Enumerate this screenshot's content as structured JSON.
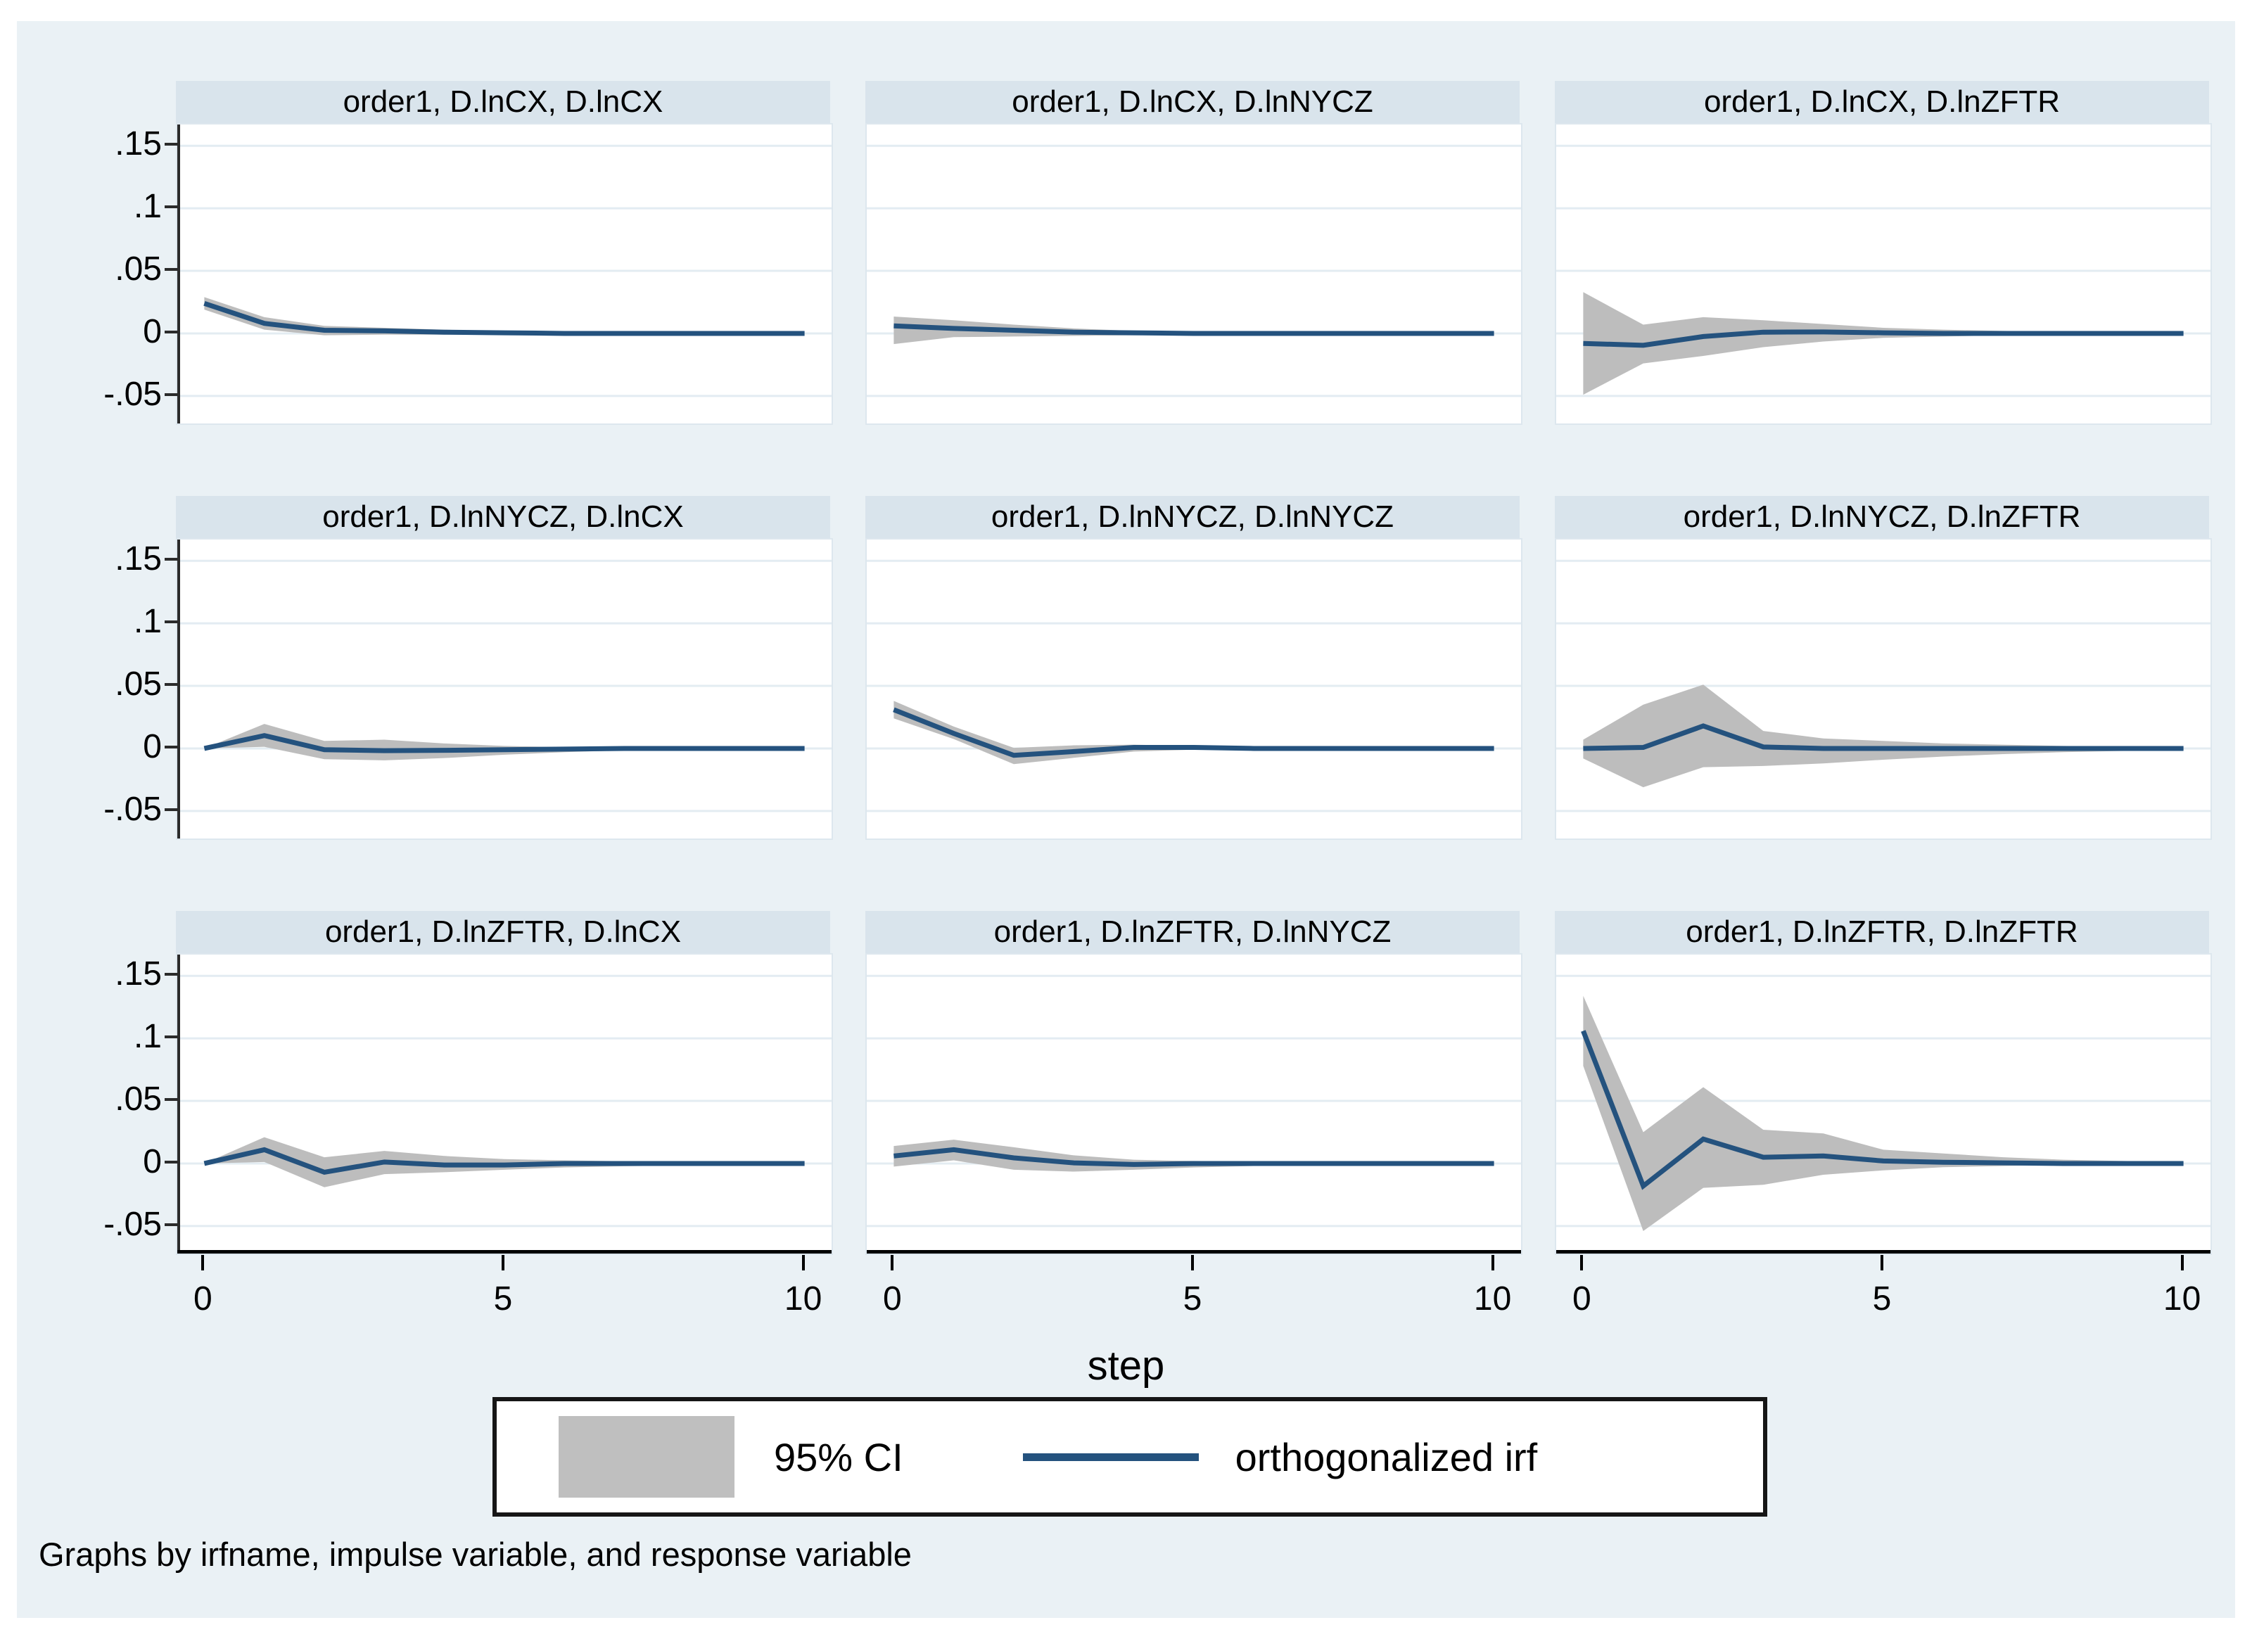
{
  "figure": {
    "canvas_color": "#eaf1f5",
    "title_strip_color": "#d9e4ec",
    "plot_bg": "#ffffff",
    "grid_color": "#e3ecf2",
    "irf_color": "#24527e",
    "ci_color": "#bdbdbd",
    "xlabel": "step",
    "note": "Graphs by irfname, impulse variable, and response variable",
    "legend": {
      "ci_label": "95% CI",
      "irf_label": "orthogonalized irf"
    }
  },
  "chart_data": {
    "type": "line",
    "layout": "3x3 small multiples (Stata irf graph oirf)",
    "x": [
      0,
      1,
      2,
      3,
      4,
      5,
      6,
      7,
      8,
      9,
      10
    ],
    "xticks": [
      0,
      5,
      10
    ],
    "xtick_labels": [
      "0",
      "5",
      "10"
    ],
    "ytick_labels": [
      ".15",
      ".1",
      ".05",
      "0",
      "-.05"
    ],
    "ytick_values": [
      0.15,
      0.1,
      0.05,
      0,
      -0.05
    ],
    "ylim": [
      -0.072,
      0.167
    ],
    "xlim": [
      -0.45,
      10.45
    ],
    "xlabel": "step",
    "grid": "horizontal",
    "legend_position": "bottom center",
    "series_names": [
      "95% CI",
      "orthogonalized irf"
    ],
    "panels": [
      {
        "title": "order1, D.lnCX, D.lnCX",
        "irf": [
          0.024,
          0.008,
          0.0025,
          0.002,
          0.001,
          0.0005,
          0,
          0,
          0,
          0,
          0
        ],
        "ci_upper": [
          0.029,
          0.013,
          0.006,
          0.0045,
          0.003,
          0.0015,
          0.001,
          0.0005,
          0,
          0,
          0
        ],
        "ci_lower": [
          0.019,
          0.003,
          -0.0015,
          -0.001,
          -0.001,
          -0.0008,
          -0.0005,
          0,
          0,
          0,
          0
        ]
      },
      {
        "title": "order1, D.lnCX, D.lnNYCZ",
        "irf": [
          0.006,
          0.004,
          0.0025,
          0.001,
          0.0005,
          0,
          0,
          0,
          0,
          0,
          0
        ],
        "ci_upper": [
          0.0135,
          0.0105,
          0.007,
          0.004,
          0.002,
          0.001,
          0.0005,
          0,
          0,
          0,
          0
        ],
        "ci_lower": [
          -0.0085,
          -0.003,
          -0.0025,
          -0.002,
          -0.0015,
          -0.001,
          -0.0005,
          0,
          0,
          0,
          0
        ]
      },
      {
        "title": "order1, D.lnCX, D.lnZFTR",
        "irf": [
          -0.008,
          -0.0095,
          -0.0025,
          0.001,
          0.0012,
          0.0005,
          0,
          0,
          0,
          0,
          0
        ],
        "ci_upper": [
          0.033,
          0.007,
          0.013,
          0.0105,
          0.0075,
          0.0045,
          0.003,
          0.002,
          0.0012,
          0.0008,
          0.0005
        ],
        "ci_lower": [
          -0.049,
          -0.024,
          -0.018,
          -0.011,
          -0.0065,
          -0.0035,
          -0.0025,
          -0.0015,
          -0.001,
          -0.0008,
          -0.0005
        ]
      },
      {
        "title": "order1, D.lnNYCZ, D.lnCX",
        "irf": [
          0,
          0.0103,
          -0.001,
          -0.0018,
          -0.0015,
          -0.001,
          -0.0005,
          0,
          0,
          0,
          0
        ],
        "ci_upper": [
          0,
          0.0196,
          0.006,
          0.007,
          0.004,
          0.002,
          0.001,
          0.0006,
          0.0003,
          0,
          0
        ],
        "ci_lower": [
          0,
          0.0013,
          -0.0086,
          -0.0095,
          -0.0077,
          -0.005,
          -0.003,
          -0.0015,
          -0.0008,
          0,
          0
        ]
      },
      {
        "title": "order1, D.lnNYCZ, D.lnNYCZ",
        "irf": [
          0.031,
          0.012,
          -0.0055,
          -0.0025,
          0.0008,
          0.0008,
          0,
          0,
          0,
          0,
          0
        ],
        "ci_upper": [
          0.038,
          0.0175,
          0.0005,
          0.0025,
          0.003,
          0.002,
          0.0012,
          0.0008,
          0,
          0,
          0
        ],
        "ci_lower": [
          0.024,
          0.0075,
          -0.0125,
          -0.0075,
          -0.0025,
          -0.001,
          -0.0008,
          0,
          0,
          0,
          0
        ]
      },
      {
        "title": "order1, D.lnNYCZ, D.lnZFTR",
        "irf": [
          0,
          0.0008,
          0.018,
          0.0012,
          0,
          0,
          0,
          0,
          0,
          0,
          0
        ],
        "ci_upper": [
          0.007,
          0.035,
          0.051,
          0.014,
          0.008,
          0.006,
          0.004,
          0.003,
          0.002,
          0.0012,
          0.0008
        ],
        "ci_lower": [
          -0.008,
          -0.031,
          -0.015,
          -0.014,
          -0.012,
          -0.009,
          -0.0065,
          -0.0045,
          -0.003,
          -0.002,
          -0.0012
        ]
      },
      {
        "title": "order1, D.lnZFTR, D.lnCX",
        "irf": [
          0,
          0.011,
          -0.007,
          0.0012,
          -0.0012,
          -0.0012,
          0,
          0,
          0,
          0,
          0
        ],
        "ci_upper": [
          0,
          0.021,
          0.005,
          0.01,
          0.006,
          0.0035,
          0.0025,
          0.0018,
          0.0012,
          0.0008,
          0.0005
        ],
        "ci_lower": [
          0,
          0.0012,
          -0.019,
          -0.0085,
          -0.007,
          -0.005,
          -0.0032,
          -0.0022,
          -0.0015,
          -0.001,
          -0.0006
        ]
      },
      {
        "title": "order1, D.lnZFTR, D.lnNYCZ",
        "irf": [
          0.006,
          0.011,
          0.0045,
          0.0005,
          -0.0008,
          0,
          0,
          0,
          0,
          0,
          0
        ],
        "ci_upper": [
          0.014,
          0.019,
          0.013,
          0.0065,
          0.003,
          0.002,
          0.0015,
          0.001,
          0.0006,
          0,
          0
        ],
        "ci_lower": [
          -0.0025,
          0.0025,
          -0.005,
          -0.0065,
          -0.005,
          -0.0032,
          -0.002,
          -0.0012,
          -0.0007,
          0,
          0
        ]
      },
      {
        "title": "order1, D.lnZFTR, D.lnZFTR",
        "irf": [
          0.106,
          -0.018,
          0.0195,
          0.005,
          0.006,
          0.002,
          0.001,
          0.0005,
          0,
          0,
          0
        ],
        "ci_upper": [
          0.134,
          0.025,
          0.061,
          0.027,
          0.024,
          0.011,
          0.008,
          0.005,
          0.003,
          0.002,
          0.001
        ],
        "ci_lower": [
          0.078,
          -0.054,
          -0.0195,
          -0.017,
          -0.009,
          -0.0055,
          -0.003,
          -0.002,
          -0.001,
          -0.0008,
          0
        ]
      }
    ]
  }
}
